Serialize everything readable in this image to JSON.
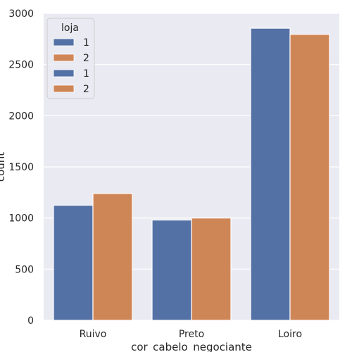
{
  "chart_data": {
    "type": "bar",
    "xlabel": "cor_cabelo_negociante",
    "ylabel": "count",
    "categories": [
      "Ruivo",
      "Preto",
      "Loiro"
    ],
    "ylim": [
      0,
      3000
    ],
    "yticks": [
      "0",
      "500",
      "1000",
      "1500",
      "2000",
      "2500",
      "3000"
    ],
    "grid": true,
    "series": [
      {
        "name": "1",
        "color": "#5471a6",
        "values": [
          1125,
          980,
          2855
        ]
      },
      {
        "name": "2",
        "color": "#cf8657",
        "values": [
          1240,
          1000,
          2795
        ]
      }
    ],
    "legend": {
      "title": "loja",
      "placement": "top-left",
      "entries": [
        {
          "label": "1",
          "color": "#5471a6"
        },
        {
          "label": "2",
          "color": "#cf8657"
        },
        {
          "label": "1",
          "color": "#5471a6"
        },
        {
          "label": "2",
          "color": "#cf8657"
        }
      ]
    },
    "colors": {
      "background": "#eaeaf2",
      "grid": "#ffffff"
    }
  }
}
